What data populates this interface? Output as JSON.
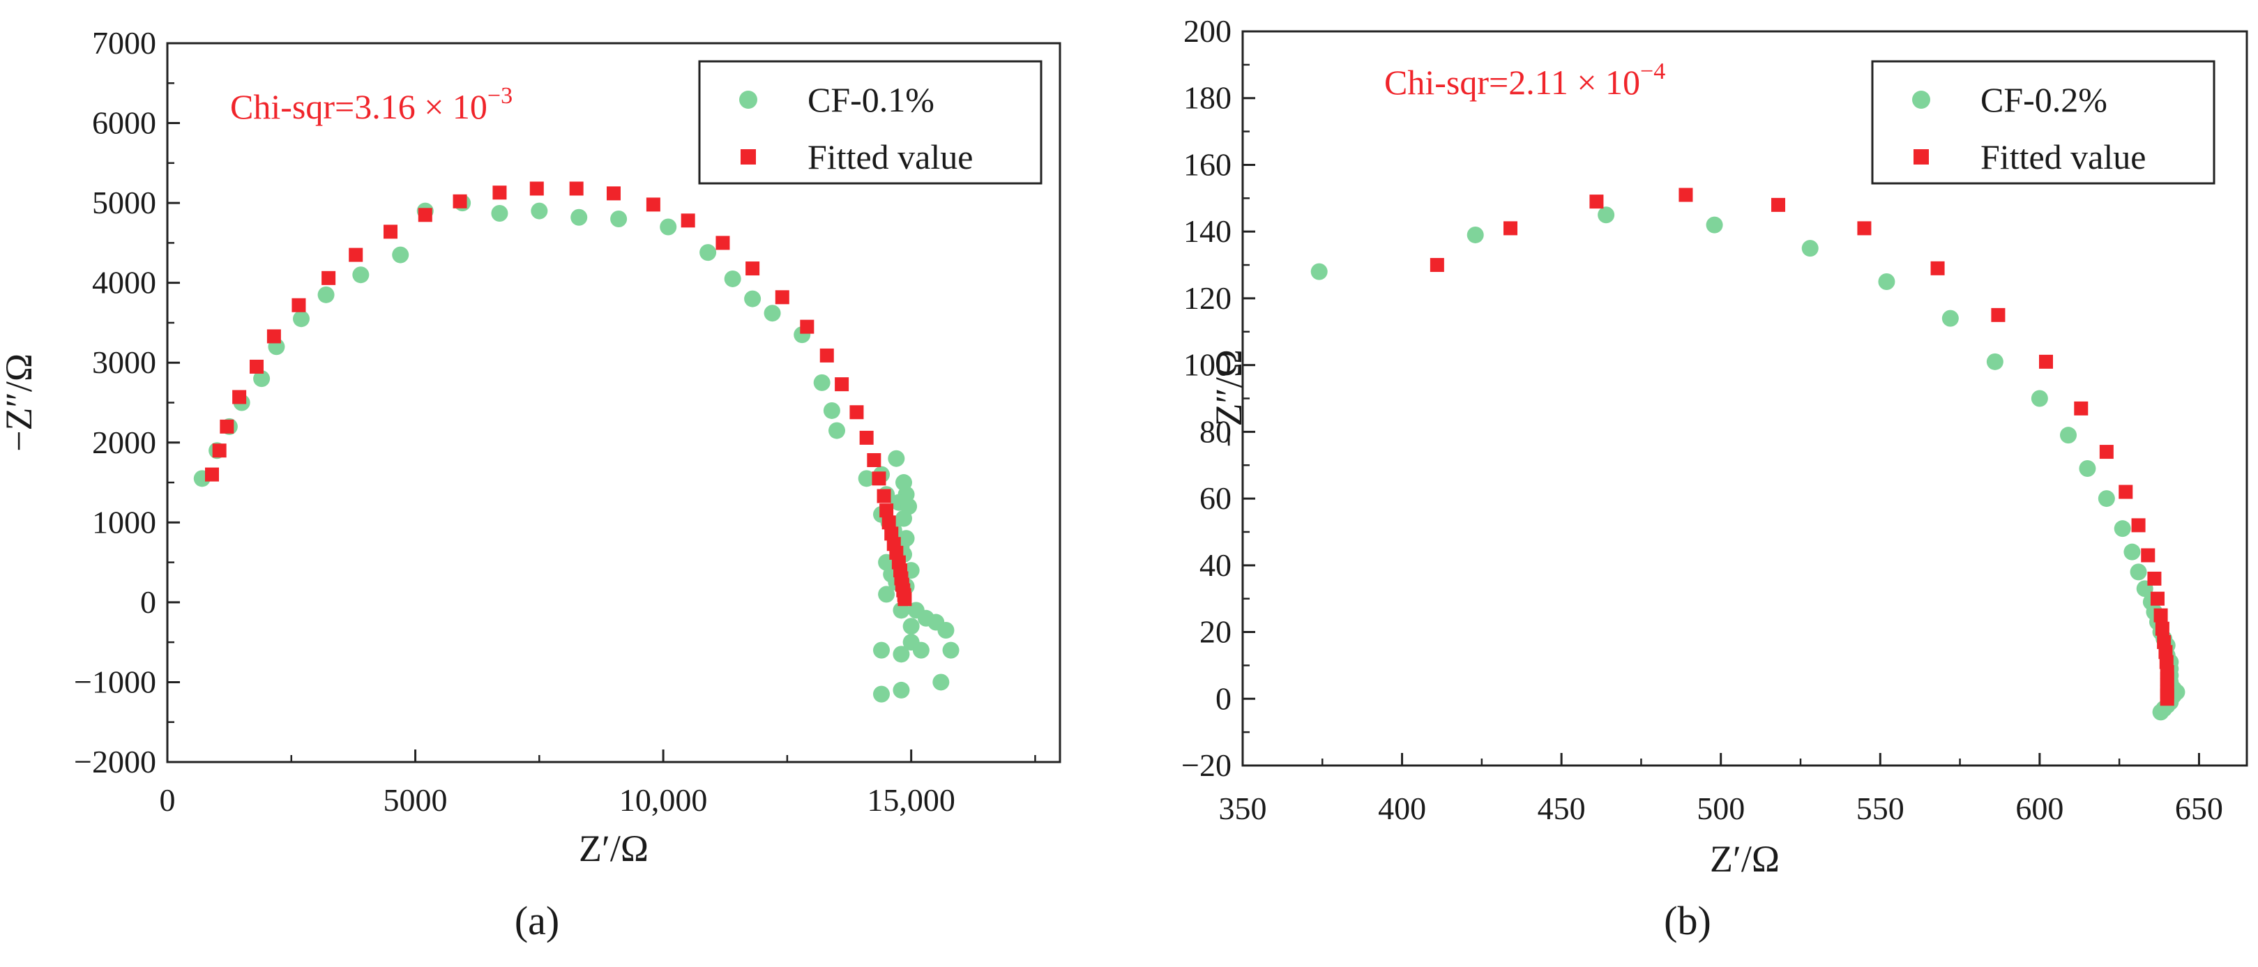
{
  "chart_data": [
    {
      "type": "scatter",
      "panel_label": "(a)",
      "xlabel": "Z′/Ω",
      "ylabel": "−Z″/Ω",
      "xlim": [
        0,
        18000
      ],
      "ylim": [
        -2000,
        7000
      ],
      "xticks": [
        0,
        5000,
        10000,
        15000
      ],
      "xtick_labels": [
        "0",
        "5000",
        "10,000",
        "15,000"
      ],
      "yticks": [
        -2000,
        -1000,
        0,
        1000,
        2000,
        3000,
        4000,
        5000,
        6000,
        7000
      ],
      "ytick_labels": [
        "−2000",
        "−1000",
        "0",
        "1000",
        "2000",
        "3000",
        "4000",
        "5000",
        "6000",
        "7000"
      ],
      "annotation": {
        "text": "Chi-sqr=3.16 × 10",
        "sup": "−3"
      },
      "legend_position": "top-right",
      "colors": {
        "measured": "#7fd49a",
        "fitted": "#f0242a"
      },
      "series": [
        {
          "name": "CF-0.1%",
          "marker": "circle",
          "x": [
            700,
            1000,
            1250,
            1500,
            1900,
            2200,
            2700,
            3200,
            3900,
            4700,
            5200,
            5950,
            6700,
            7500,
            8300,
            9100,
            10100,
            10900,
            11400,
            11800,
            12200,
            12800,
            13200,
            13400,
            13500,
            14100,
            14400,
            14700,
            14850,
            14900,
            14500,
            14750,
            14400,
            14550,
            14950,
            14850,
            14650,
            14800,
            14900,
            14500,
            14850,
            14600,
            15000,
            14700,
            14900,
            14500,
            15100,
            14800,
            15300,
            15000,
            15500,
            15700,
            15000,
            15200,
            14800,
            15800,
            14400,
            15600,
            14800,
            14400
          ],
          "y": [
            1550,
            1900,
            2200,
            2500,
            2800,
            3200,
            3550,
            3850,
            4100,
            4350,
            4900,
            5000,
            4870,
            4900,
            4820,
            4800,
            4700,
            4380,
            4050,
            3800,
            3620,
            3350,
            2750,
            2400,
            2150,
            1550,
            1600,
            1800,
            1500,
            1350,
            1350,
            1250,
            1100,
            1000,
            1200,
            1050,
            900,
            700,
            800,
            500,
            600,
            350,
            400,
            250,
            200,
            100,
            -100,
            -100,
            -200,
            -300,
            -250,
            -350,
            -500,
            -600,
            -650,
            -600,
            -600,
            -1000,
            -1100,
            -1150
          ]
        },
        {
          "name": "Fitted value",
          "marker": "square",
          "x": [
            900,
            1050,
            1200,
            1450,
            1800,
            2150,
            2650,
            3250,
            3800,
            4500,
            5200,
            5900,
            6700,
            7450,
            8250,
            9000,
            9800,
            10500,
            11200,
            11800,
            12400,
            12900,
            13300,
            13600,
            13900,
            14100,
            14250,
            14350,
            14450,
            14500,
            14550,
            14600,
            14650,
            14700,
            14750,
            14780,
            14800,
            14820,
            14840,
            14860,
            14870
          ],
          "y": [
            1600,
            1900,
            2200,
            2570,
            2950,
            3330,
            3720,
            4060,
            4350,
            4640,
            4850,
            5020,
            5130,
            5180,
            5180,
            5120,
            4980,
            4780,
            4500,
            4180,
            3820,
            3450,
            3090,
            2730,
            2380,
            2060,
            1780,
            1550,
            1330,
            1150,
            1000,
            860,
            730,
            620,
            500,
            400,
            300,
            220,
            150,
            90,
            40
          ]
        }
      ]
    },
    {
      "type": "scatter",
      "panel_label": "(b)",
      "xlabel": "Z′/Ω",
      "ylabel": "−Z″/Ω",
      "xlim": [
        350,
        665
      ],
      "ylim": [
        -20,
        200
      ],
      "xticks": [
        350,
        400,
        450,
        500,
        550,
        600,
        650
      ],
      "xtick_labels": [
        "350",
        "400",
        "450",
        "500",
        "550",
        "600",
        "650"
      ],
      "yticks": [
        -20,
        0,
        20,
        40,
        60,
        80,
        100,
        120,
        140,
        160,
        180,
        200
      ],
      "ytick_labels": [
        "−20",
        "0",
        "20",
        "40",
        "60",
        "80",
        "100",
        "120",
        "140",
        "160",
        "180",
        "200"
      ],
      "annotation": {
        "text": "Chi-sqr=2.11 × 10",
        "sup": "−4"
      },
      "legend_position": "top-right",
      "colors": {
        "measured": "#7fd49a",
        "fitted": "#f0242a"
      },
      "series": [
        {
          "name": "CF-0.2%",
          "marker": "circle",
          "x": [
            374,
            423,
            464,
            498,
            528,
            552,
            572,
            586,
            600,
            609,
            615,
            621,
            626,
            629,
            631,
            633,
            635,
            636,
            637,
            638,
            639,
            640,
            640,
            641,
            641,
            641,
            641,
            642,
            642,
            643,
            641,
            640,
            639,
            638
          ],
          "y": [
            128,
            139,
            145,
            142,
            135,
            125,
            114,
            101,
            90,
            79,
            69,
            60,
            51,
            44,
            38,
            33,
            29,
            26,
            23,
            20,
            18,
            16,
            13,
            11,
            9,
            7,
            5,
            3,
            1,
            2,
            -1,
            -2,
            -3,
            -4
          ]
        },
        {
          "name": "Fitted value",
          "marker": "square",
          "x": [
            411,
            434,
            461,
            489,
            518,
            545,
            568,
            587,
            602,
            613,
            621,
            627,
            631,
            634,
            636,
            637,
            638,
            638.5,
            639,
            639.5,
            639.8,
            640,
            640,
            640,
            640,
            640,
            640
          ],
          "y": [
            130,
            141,
            149,
            151,
            148,
            141,
            129,
            115,
            101,
            87,
            74,
            62,
            52,
            43,
            36,
            30,
            25,
            21,
            17,
            14,
            11,
            8,
            6,
            4,
            2,
            1,
            0
          ]
        }
      ]
    }
  ]
}
